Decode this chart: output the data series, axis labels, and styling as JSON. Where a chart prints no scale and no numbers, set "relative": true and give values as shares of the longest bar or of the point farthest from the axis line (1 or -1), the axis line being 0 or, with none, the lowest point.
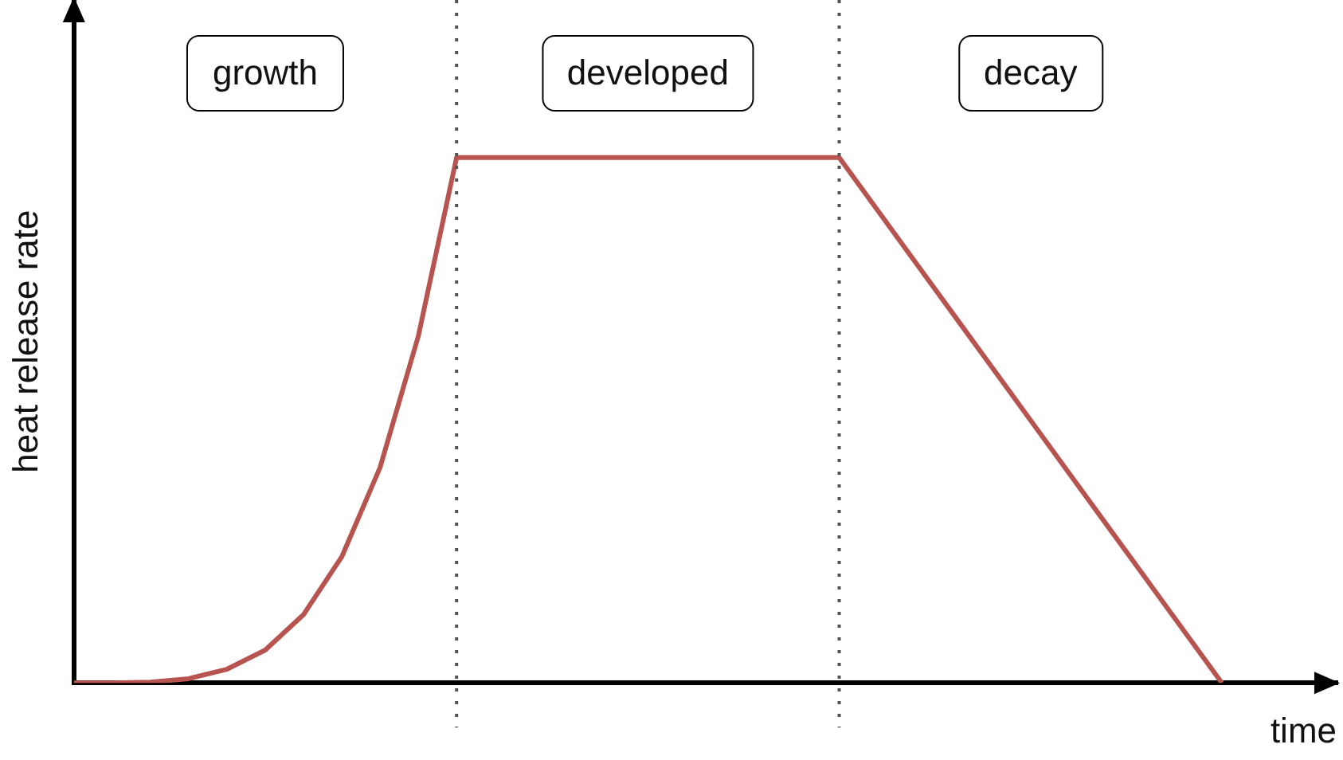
{
  "chart_data": {
    "type": "line",
    "relative": true,
    "xlabel": "time",
    "ylabel": "heat release rate",
    "tick_labels": false,
    "grid": false,
    "legend": false,
    "marker": "none",
    "line_style": "solid",
    "categories": [
      null,
      null,
      null,
      null,
      null,
      null,
      null,
      null,
      null,
      null,
      null,
      null,
      null,
      null,
      null,
      null,
      null,
      null,
      null,
      null,
      null,
      null,
      null,
      null,
      null,
      null,
      null,
      null,
      null,
      null,
      null,
      null,
      null,
      null
    ],
    "series": [
      {
        "color": "#b85450",
        "values": [
          0,
          0.0001,
          0.0016,
          0.008,
          0.026,
          0.0625,
          0.13,
          0.24,
          0.41,
          0.66,
          1,
          1,
          1,
          1,
          1,
          1,
          1,
          1,
          1,
          1,
          1,
          0.9,
          0.8,
          0.7,
          0.6,
          0.5,
          0.4,
          0.3,
          0.2,
          0.1,
          0,
          null,
          null,
          null
        ]
      }
    ],
    "annotations": [
      "growth",
      "developed",
      "decay"
    ]
  }
}
